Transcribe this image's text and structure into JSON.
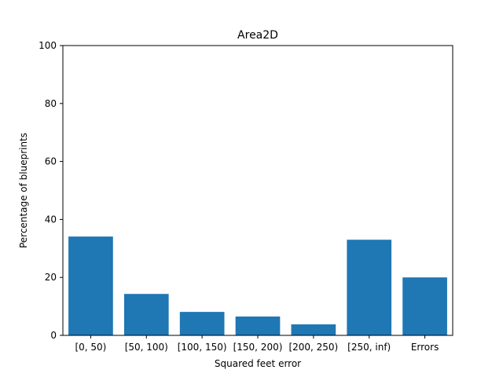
{
  "chart_data": {
    "type": "bar",
    "title": "Area2D",
    "xlabel": "Squared feet error",
    "ylabel": "Percentage of blueprints",
    "categories": [
      "[0, 50)",
      "[50, 100)",
      "[100, 150)",
      "[150, 200)",
      "[200, 250)",
      "[250, inf)",
      "Errors"
    ],
    "values": [
      34.1,
      14.3,
      8.1,
      6.5,
      3.8,
      33.0,
      20.0
    ],
    "ylim": [
      0,
      100
    ],
    "yticks": [
      0,
      20,
      40,
      60,
      80,
      100
    ],
    "grid": false,
    "legend": "none",
    "bar_color": "#1f77b4"
  }
}
